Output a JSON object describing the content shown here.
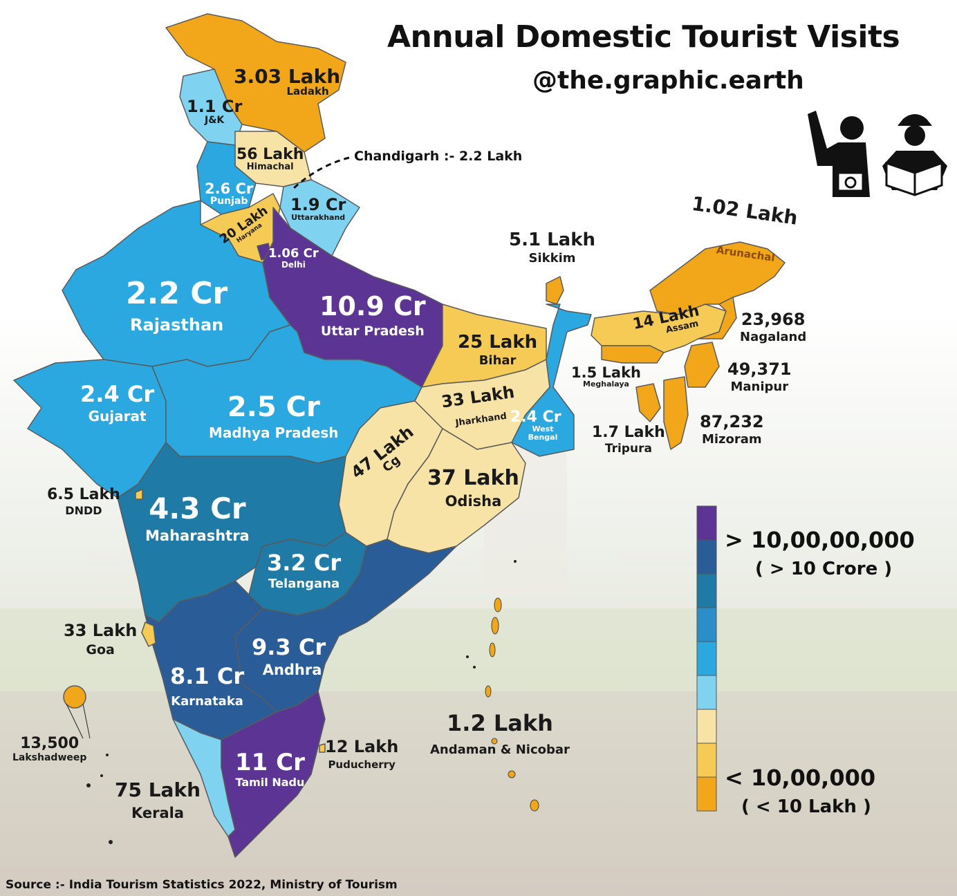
{
  "title": "Annual Domestic Tourist Visits",
  "handle": "@the.graphic.earth",
  "source": "Source :- India Tourism Statistics 2022, Ministry of Tourism",
  "chandigarh_note": "Chandigarh :- 2.2 Lakh",
  "icons": [
    "tourist-with-camera-icon",
    "tourist-reading-map-icon"
  ],
  "colors": {
    "level1": "#f2a71b",
    "level2": "#f6cb55",
    "level3": "#f8e3a6",
    "level4": "#7fd3f0",
    "level5": "#2aa8df",
    "level6": "#2b8ec9",
    "level7": "#1f7aa5",
    "level8": "#2a5d97",
    "level9": "#5b3494"
  },
  "legend": {
    "top_label": "> 10,00,00,000",
    "top_sub": "( > 10 Crore )",
    "bottom_label": "< 10,00,000",
    "bottom_sub": "( < 10 Lakh )",
    "bins_top_to_bottom": [
      "#5b3494",
      "#2a5d97",
      "#1f7aa5",
      "#2b8ec9",
      "#2aa8df",
      "#7fd3f0",
      "#f8e3a6",
      "#f6cb55",
      "#f2a71b"
    ]
  },
  "regions": [
    {
      "id": "ladakh",
      "value": "3.03 Lakh",
      "name": "Ladakh"
    },
    {
      "id": "jk",
      "value": "1.1 Cr",
      "name": "J&K"
    },
    {
      "id": "himachal",
      "value": "56 Lakh",
      "name": "Himachal"
    },
    {
      "id": "punjab",
      "value": "2.6 Cr",
      "name": "Punjab"
    },
    {
      "id": "haryana",
      "value": "20 Lakh",
      "name": "Haryana"
    },
    {
      "id": "uttarakhand",
      "value": "1.9 Cr",
      "name": "Uttarakhand"
    },
    {
      "id": "delhi",
      "value": "1.06 Cr",
      "name": "Delhi"
    },
    {
      "id": "rajasthan",
      "value": "2.2 Cr",
      "name": "Rajasthan"
    },
    {
      "id": "up",
      "value": "10.9 Cr",
      "name": "Uttar Pradesh"
    },
    {
      "id": "bihar",
      "value": "25 Lakh",
      "name": "Bihar"
    },
    {
      "id": "sikkim",
      "value": "5.1 Lakh",
      "name": "Sikkim"
    },
    {
      "id": "arunachal",
      "value": "1.02 Lakh",
      "name": "Arunachal"
    },
    {
      "id": "assam",
      "value": "14 Lakh",
      "name": "Assam"
    },
    {
      "id": "nagaland",
      "value": "23,968",
      "name": "Nagaland"
    },
    {
      "id": "meghalaya",
      "value": "1.5 Lakh",
      "name": "Meghalaya"
    },
    {
      "id": "manipur",
      "value": "49,371",
      "name": "Manipur"
    },
    {
      "id": "tripura",
      "value": "1.7 Lakh",
      "name": "Tripura"
    },
    {
      "id": "mizoram",
      "value": "87,232",
      "name": "Mizoram"
    },
    {
      "id": "gujarat",
      "value": "2.4 Cr",
      "name": "Gujarat"
    },
    {
      "id": "mp",
      "value": "2.5 Cr",
      "name": "Madhya Pradesh"
    },
    {
      "id": "jharkhand",
      "value": "33 Lakh",
      "name": "Jharkhand"
    },
    {
      "id": "wb",
      "value": "2.4 Cr",
      "name": "West Bengal"
    },
    {
      "id": "cg",
      "value": "47 Lakh",
      "name": "Cg"
    },
    {
      "id": "odisha",
      "value": "37 Lakh",
      "name": "Odisha"
    },
    {
      "id": "dndd",
      "value": "6.5 Lakh",
      "name": "DNDD"
    },
    {
      "id": "maharashtra",
      "value": "4.3 Cr",
      "name": "Maharashtra"
    },
    {
      "id": "telangana",
      "value": "3.2 Cr",
      "name": "Telangana"
    },
    {
      "id": "goa",
      "value": "33 Lakh",
      "name": "Goa"
    },
    {
      "id": "andhra",
      "value": "9.3 Cr",
      "name": "Andhra"
    },
    {
      "id": "karnataka",
      "value": "8.1 Cr",
      "name": "Karnataka"
    },
    {
      "id": "lakshadweep",
      "value": "13,500",
      "name": "Lakshadweep"
    },
    {
      "id": "kerala",
      "value": "75 Lakh",
      "name": "Kerala"
    },
    {
      "id": "tn",
      "value": "11 Cr",
      "name": "Tamil Nadu"
    },
    {
      "id": "puducherry",
      "value": "12 Lakh",
      "name": "Puducherry"
    },
    {
      "id": "andaman",
      "value": "1.2 Lakh",
      "name": "Andaman & Nicobar"
    }
  ]
}
